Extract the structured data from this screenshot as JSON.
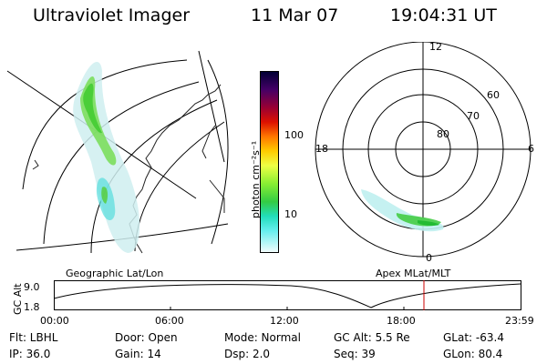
{
  "header": {
    "instrument": "Ultraviolet Imager",
    "date": "11 Mar 07",
    "time": "19:04:31 UT"
  },
  "colorbar": {
    "unit_label": "photon cm⁻²s⁻¹",
    "tick_labels": [
      "100",
      "10"
    ],
    "colors": [
      "#000033",
      "#220044",
      "#550066",
      "#880044",
      "#bb0022",
      "#dd1100",
      "#ee4400",
      "#ff8800",
      "#ffbb00",
      "#ffee33",
      "#ddff44",
      "#99ee33",
      "#55dd22",
      "#22cc55",
      "#22ddaa",
      "#44eeee",
      "#99f2f2",
      "#ccf6f6",
      "#e6fafa",
      "#f4fcfc"
    ]
  },
  "geo_panel": {
    "label": "Geographic Lat/Lon"
  },
  "polar_panel": {
    "label": "Apex MLat/MLT",
    "mlt_labels": {
      "top": "12",
      "left": "18",
      "right": "6",
      "bottom": "0"
    },
    "mlat_labels": [
      "60",
      "70",
      "80"
    ]
  },
  "altitude_plot": {
    "axis_label": "GC Alt",
    "y_ticks": [
      "9.0",
      "1.8"
    ],
    "x_ticks": [
      "00:00",
      "06:00",
      "12:00",
      "18:00",
      "23:59"
    ],
    "current_time_marker_color": "#cc0000"
  },
  "info": {
    "filter": "Flt: LBHL",
    "ip": "IP: 36.0",
    "door": "Door: Open",
    "gain": "Gain: 14",
    "mode": "Mode: Normal",
    "dsp": "Dsp:    2.0",
    "gc_alt": "GC Alt: 5.5 Re",
    "seq": "Seq: 39",
    "glat": "GLat: -63.4",
    "glon": "GLon:  80.4"
  }
}
